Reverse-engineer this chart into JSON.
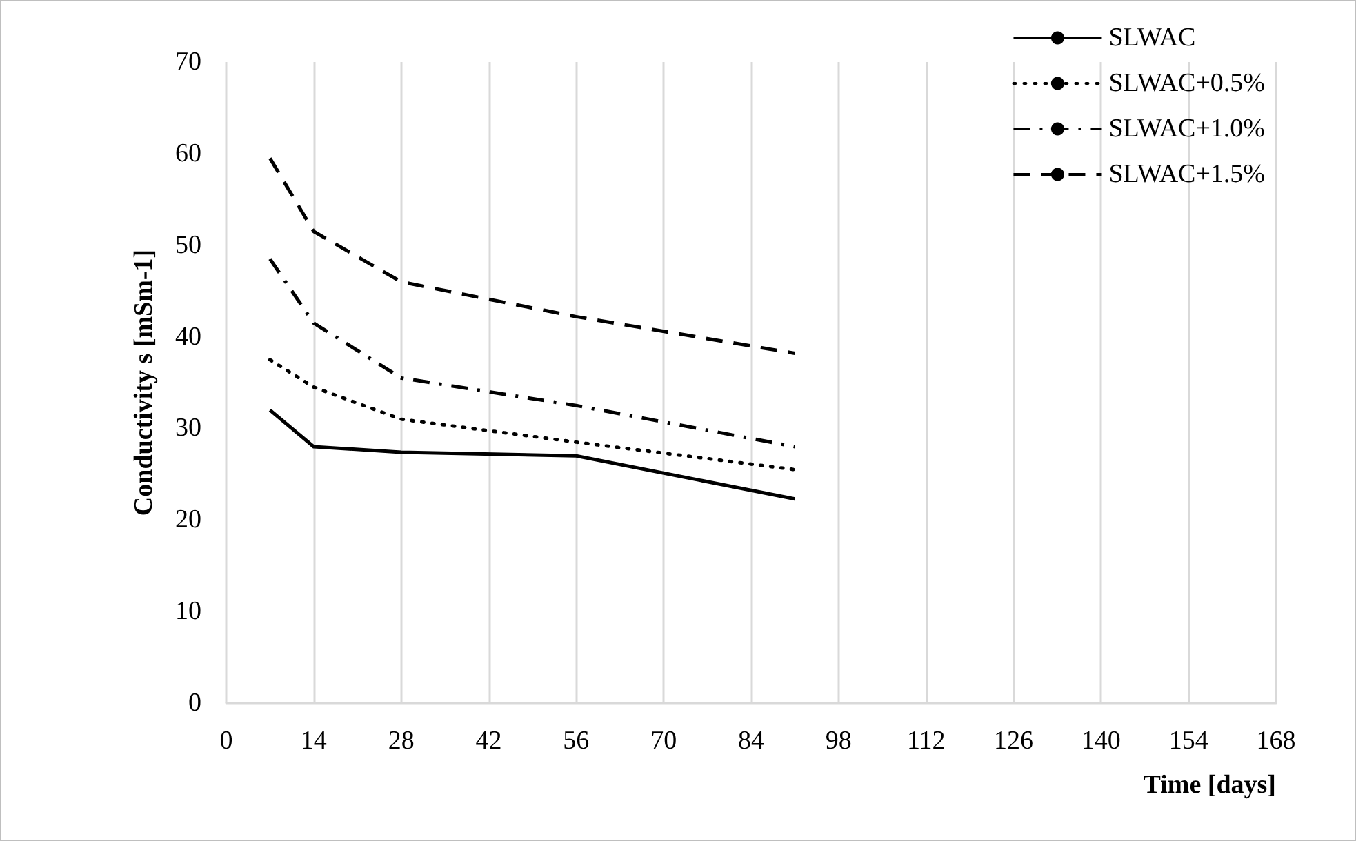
{
  "chart_data": {
    "type": "line",
    "xlabel": "Time [days]",
    "ylabel": "Conductivity s [mSm-1]",
    "x": [
      7,
      14,
      28,
      56,
      91
    ],
    "xlim": [
      0,
      168
    ],
    "xticks": [
      0,
      14,
      28,
      42,
      56,
      70,
      84,
      98,
      112,
      126,
      140,
      154,
      168
    ],
    "ylim": [
      0,
      70
    ],
    "yticks": [
      0,
      10,
      20,
      30,
      40,
      50,
      60,
      70
    ],
    "grid": "x",
    "legend": "top right",
    "marker": "none",
    "series": [
      {
        "name": "SLWAC",
        "color": "#000000",
        "line_style": "solid",
        "values": [
          32,
          28,
          27.4,
          27,
          22.3
        ]
      },
      {
        "name": "SLWAC+0.5%",
        "color": "#000000",
        "line_style": "dotted",
        "values": [
          37.5,
          34.5,
          31,
          28.5,
          25.5
        ]
      },
      {
        "name": "SLWAC+1.0%",
        "color": "#000000",
        "line_style": "dashdot",
        "values": [
          48.5,
          41.5,
          35.5,
          32.5,
          28
        ]
      },
      {
        "name": "SLWAC+1.5%",
        "color": "#000000",
        "line_style": "dashed",
        "values": [
          59.5,
          51.5,
          46,
          42.2,
          38.2
        ]
      }
    ]
  }
}
